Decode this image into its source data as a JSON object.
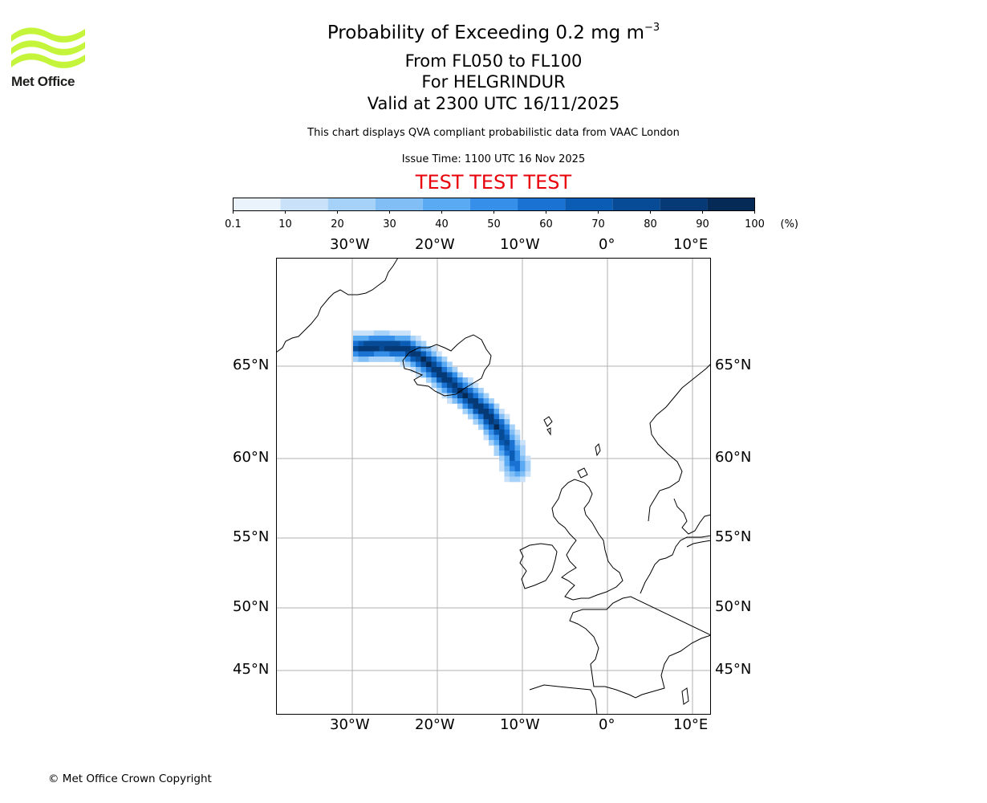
{
  "header": {
    "logo_text": "Met Office",
    "title_prefix": "Probability of Exceeding 0.2 mg m",
    "title_exponent": "−3",
    "flight_levels": "From FL050 to FL100",
    "volcano_line": "For HELGRINDUR",
    "valid_time": "Valid at 2300 UTC 16/11/2025",
    "description": "This chart displays QVA compliant probabilistic data from VAAC London",
    "issue_time": "Issue Time: 1100 UTC 16 Nov 2025",
    "test_banner": "TEST TEST TEST"
  },
  "colorbar": {
    "tick_labels": [
      "0.1",
      "10",
      "20",
      "30",
      "40",
      "50",
      "60",
      "70",
      "80",
      "90",
      "100"
    ],
    "unit": "(%)",
    "colors": [
      "#eaf3fc",
      "#c9e2f9",
      "#a6d1f8",
      "#81bef5",
      "#5aaaf3",
      "#3690ea",
      "#1a73d2",
      "#0b5cb4",
      "#074a95",
      "#053a76",
      "#052a55"
    ]
  },
  "map": {
    "lon_labels": [
      "30°W",
      "20°W",
      "10°W",
      "0°",
      "10°E"
    ],
    "lat_labels": [
      "65°N",
      "60°N",
      "55°N",
      "50°N",
      "45°N"
    ],
    "lon_range": [
      -39,
      12
    ],
    "lat_range": [
      42,
      71
    ]
  },
  "footer": {
    "copyright": "© Met Office Crown Copyright"
  }
}
